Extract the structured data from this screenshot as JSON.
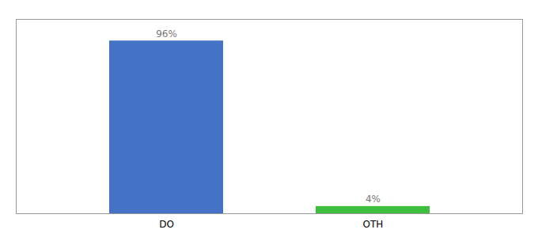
{
  "chart_data": {
    "type": "bar",
    "categories": [
      "DO",
      "OTH"
    ],
    "values": [
      96,
      4
    ],
    "value_labels": [
      "96%",
      "4%"
    ],
    "colors": [
      "#4472c4",
      "#3dbf3d"
    ],
    "ylim": [
      0,
      108
    ],
    "data_labels": true,
    "tick_labels": "x"
  }
}
